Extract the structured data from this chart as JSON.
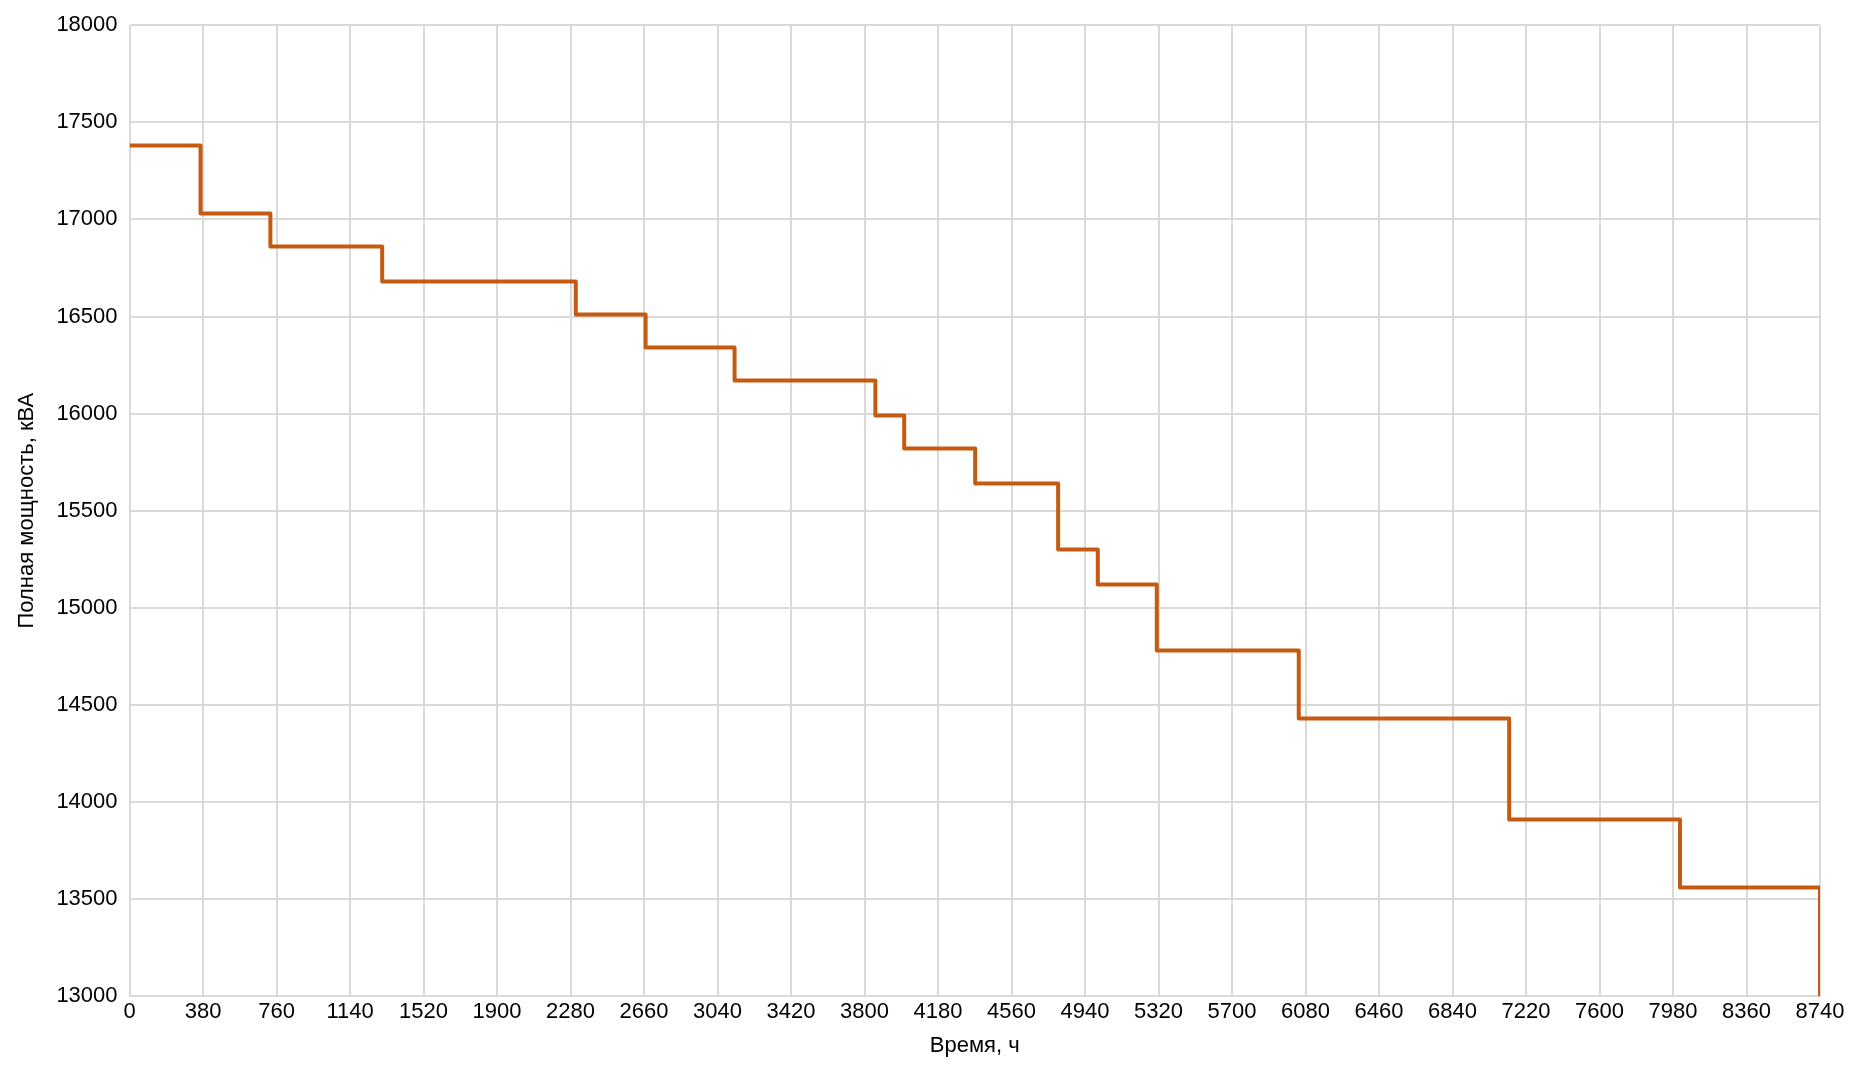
{
  "chart_data": {
    "type": "step",
    "xlabel": "Время, ч",
    "ylabel": "Полная мощность, кВА",
    "x": [
      0,
      367,
      728,
      1306,
      2307,
      2668,
      3128,
      3856,
      4005,
      4372,
      4801,
      5006,
      5311,
      6045,
      7133,
      8016,
      8740
    ],
    "series": [
      {
        "color": "#c55a11",
        "values": [
          17380,
          17030,
          16860,
          16680,
          16510,
          16340,
          16170,
          15990,
          15820,
          15640,
          15300,
          15120,
          14780,
          14430,
          13910,
          13560,
          13000
        ]
      }
    ],
    "xlim": [
      0,
      8740
    ],
    "xticks": [
      0,
      380,
      760,
      1140,
      1520,
      1900,
      2280,
      2660,
      3040,
      3420,
      3800,
      4180,
      4560,
      4940,
      5320,
      5700,
      6080,
      6460,
      6840,
      7220,
      7600,
      7980,
      8360,
      8740
    ],
    "ylim": [
      13000,
      18000
    ],
    "yticks": [
      13000,
      13500,
      14000,
      14500,
      15000,
      15500,
      16000,
      16500,
      17000,
      17500,
      18000
    ],
    "grid": true,
    "legend": false
  }
}
